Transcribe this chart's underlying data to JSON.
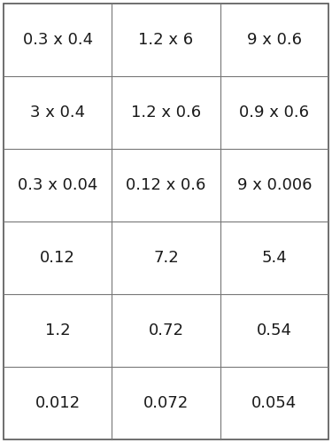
{
  "grid": [
    [
      "0.3 x 0.4",
      "1.2 x 6",
      "9 x 0.6"
    ],
    [
      "3 x 0.4",
      "1.2 x 0.6",
      "0.9 x 0.6"
    ],
    [
      "0.3 x 0.04",
      "0.12 x 0.6",
      "9 x 0.006"
    ],
    [
      "0.12",
      "7.2",
      "5.4"
    ],
    [
      "1.2",
      "0.72",
      "0.54"
    ],
    [
      "0.012",
      "0.072",
      "0.054"
    ]
  ],
  "nrows": 6,
  "ncols": 3,
  "bg_color": "#ffffff",
  "line_color": "#777777",
  "text_color": "#1a1a1a",
  "font_size": 13,
  "border_color": "#555555",
  "border_lw": 1.2,
  "grid_lw": 0.8
}
